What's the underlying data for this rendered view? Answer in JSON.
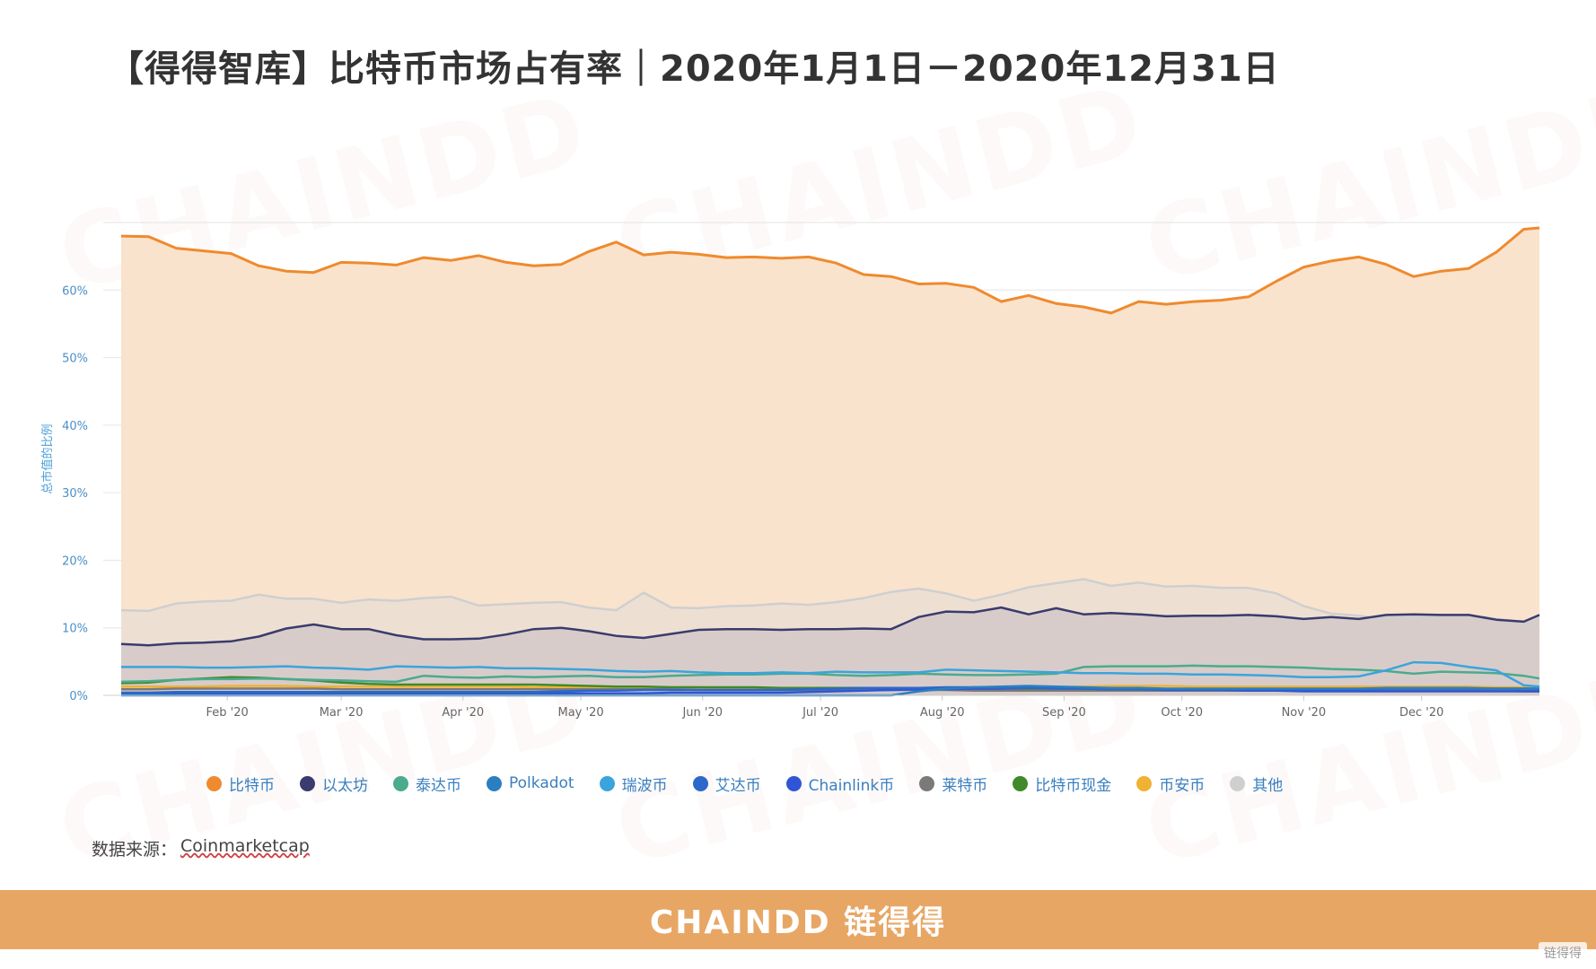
{
  "title": "【得得智库】比特币市场占有率｜2020年1月1日－2020年12月31日",
  "watermark": {
    "brand": "CHAINDD",
    "cn": "链得得"
  },
  "source": {
    "label": "数据来源：",
    "value": "Coinmarketcap"
  },
  "footer": {
    "brand": "CHAINDD 链得得"
  },
  "badge": "链得得",
  "chart_data": {
    "type": "area",
    "title": "",
    "ylabel": "总市值的比例",
    "xlabel": "",
    "ylim": [
      0,
      70
    ],
    "yticks": [
      "0%",
      "10%",
      "20%",
      "30%",
      "40%",
      "50%",
      "60%"
    ],
    "x_tick_labels": [
      "Feb '20",
      "Mar '20",
      "Apr '20",
      "May '20",
      "Jun '20",
      "Jul '20",
      "Aug '20",
      "Sep '20",
      "Oct '20",
      "Nov '20",
      "Dec '20"
    ],
    "x_range": [
      "2020-01-05",
      "2020-12-31"
    ],
    "grid": true,
    "legend_position": "bottom",
    "x": [
      "2020-01-05",
      "2020-01-12",
      "2020-01-19",
      "2020-01-26",
      "2020-02-02",
      "2020-02-09",
      "2020-02-16",
      "2020-02-23",
      "2020-03-01",
      "2020-03-08",
      "2020-03-15",
      "2020-03-22",
      "2020-03-29",
      "2020-04-05",
      "2020-04-12",
      "2020-04-19",
      "2020-04-26",
      "2020-05-03",
      "2020-05-10",
      "2020-05-17",
      "2020-05-24",
      "2020-05-31",
      "2020-06-07",
      "2020-06-14",
      "2020-06-21",
      "2020-06-28",
      "2020-07-05",
      "2020-07-12",
      "2020-07-19",
      "2020-07-26",
      "2020-08-02",
      "2020-08-09",
      "2020-08-16",
      "2020-08-23",
      "2020-08-30",
      "2020-09-06",
      "2020-09-13",
      "2020-09-20",
      "2020-09-27",
      "2020-10-04",
      "2020-10-11",
      "2020-10-18",
      "2020-10-25",
      "2020-11-01",
      "2020-11-08",
      "2020-11-15",
      "2020-11-22",
      "2020-11-29",
      "2020-12-06",
      "2020-12-13",
      "2020-12-20",
      "2020-12-27",
      "2020-12-31"
    ],
    "series": [
      {
        "name": "比特币",
        "color": "#ef8a2e",
        "fill": "#f9e3cd",
        "values": [
          68.0,
          67.9,
          66.2,
          65.8,
          65.4,
          63.6,
          62.8,
          62.6,
          64.1,
          64.0,
          63.7,
          64.8,
          64.4,
          65.1,
          64.1,
          63.6,
          63.8,
          65.7,
          67.1,
          65.2,
          65.6,
          65.3,
          64.8,
          64.9,
          64.7,
          64.9,
          64.0,
          62.3,
          62.0,
          60.9,
          61.0,
          60.4,
          58.3,
          59.2,
          58.0,
          57.5,
          56.6,
          58.3,
          57.9,
          58.3,
          58.5,
          59.0,
          61.3,
          63.4,
          64.3,
          64.9,
          63.8,
          62.0,
          62.8,
          63.2,
          65.6,
          69.0,
          69.2
        ]
      },
      {
        "name": "以太坊",
        "color": "#3a3b6e",
        "values": [
          7.6,
          7.4,
          7.7,
          7.8,
          8.0,
          8.7,
          9.9,
          10.5,
          9.8,
          9.8,
          8.9,
          8.3,
          8.3,
          8.4,
          9.0,
          9.8,
          10.0,
          9.5,
          8.8,
          8.5,
          9.1,
          9.7,
          9.8,
          9.8,
          9.7,
          9.8,
          9.8,
          9.9,
          9.8,
          11.6,
          12.4,
          12.3,
          13.0,
          12.0,
          12.9,
          12.0,
          12.2,
          12.0,
          11.7,
          11.8,
          11.8,
          11.9,
          11.7,
          11.3,
          11.6,
          11.3,
          11.9,
          12.0,
          11.9,
          11.9,
          11.2,
          10.9,
          11.9
        ]
      },
      {
        "name": "泰达币",
        "color": "#4aab8e",
        "values": [
          2.0,
          2.1,
          2.3,
          2.4,
          2.4,
          2.5,
          2.4,
          2.3,
          2.2,
          2.1,
          2.0,
          2.9,
          2.7,
          2.6,
          2.8,
          2.7,
          2.8,
          2.9,
          2.7,
          2.7,
          2.9,
          3.0,
          3.1,
          3.1,
          3.2,
          3.2,
          3.0,
          2.9,
          3.0,
          3.2,
          3.1,
          3.0,
          3.0,
          3.1,
          3.2,
          4.2,
          4.3,
          4.3,
          4.3,
          4.4,
          4.3,
          4.3,
          4.2,
          4.1,
          3.9,
          3.8,
          3.6,
          3.2,
          3.5,
          3.4,
          3.3,
          2.9,
          2.5
        ]
      },
      {
        "name": "Polkadot",
        "color": "#2a7fc2",
        "values": [
          0,
          0,
          0,
          0,
          0,
          0,
          0,
          0,
          0,
          0,
          0,
          0,
          0,
          0,
          0,
          0,
          0,
          0,
          0,
          0,
          0,
          0,
          0,
          0,
          0,
          0,
          0,
          0,
          0,
          0.6,
          1.0,
          1.2,
          1.3,
          1.4,
          1.3,
          1.2,
          1.1,
          1.1,
          1.0,
          1.0,
          1.0,
          1.0,
          1.0,
          1.0,
          1.0,
          1.0,
          1.1,
          1.1,
          1.1,
          1.1,
          1.0,
          1.0,
          1.0
        ]
      },
      {
        "name": "瑞波币",
        "color": "#3ba4dc",
        "values": [
          4.2,
          4.2,
          4.2,
          4.1,
          4.1,
          4.2,
          4.3,
          4.1,
          4.0,
          3.8,
          4.3,
          4.2,
          4.1,
          4.2,
          4.0,
          4.0,
          3.9,
          3.8,
          3.6,
          3.5,
          3.6,
          3.4,
          3.3,
          3.3,
          3.4,
          3.3,
          3.5,
          3.4,
          3.4,
          3.4,
          3.8,
          3.7,
          3.6,
          3.5,
          3.4,
          3.3,
          3.3,
          3.2,
          3.2,
          3.1,
          3.1,
          3.0,
          2.9,
          2.7,
          2.7,
          2.8,
          3.7,
          4.9,
          4.8,
          4.2,
          3.7,
          1.5,
          1.3
        ]
      },
      {
        "name": "艾达币",
        "color": "#2c68c9",
        "values": [
          0.4,
          0.4,
          0.5,
          0.5,
          0.5,
          0.5,
          0.5,
          0.5,
          0.5,
          0.5,
          0.5,
          0.5,
          0.5,
          0.5,
          0.5,
          0.5,
          0.6,
          0.7,
          0.7,
          0.8,
          0.8,
          0.8,
          0.8,
          0.8,
          0.8,
          0.9,
          1.0,
          1.1,
          1.1,
          1.1,
          1.2,
          1.2,
          1.1,
          1.1,
          1.0,
          1.0,
          0.9,
          0.9,
          0.9,
          0.9,
          0.9,
          0.9,
          0.9,
          0.9,
          0.9,
          0.9,
          1.0,
          1.0,
          1.0,
          1.0,
          1.0,
          1.0,
          1.0
        ]
      },
      {
        "name": "Chainlink币",
        "color": "#2f55d6",
        "values": [
          0.3,
          0.3,
          0.3,
          0.3,
          0.3,
          0.3,
          0.3,
          0.3,
          0.3,
          0.3,
          0.3,
          0.3,
          0.3,
          0.3,
          0.3,
          0.3,
          0.3,
          0.3,
          0.3,
          0.3,
          0.4,
          0.4,
          0.4,
          0.4,
          0.4,
          0.5,
          0.6,
          0.7,
          0.8,
          0.9,
          0.9,
          1.0,
          1.0,
          1.1,
          1.2,
          1.0,
          0.9,
          0.9,
          0.8,
          0.8,
          0.8,
          0.7,
          0.7,
          0.6,
          0.6,
          0.6,
          0.6,
          0.6,
          0.6,
          0.6,
          0.6,
          0.6,
          0.6
        ]
      },
      {
        "name": "莱特币",
        "color": "#7a7a7a",
        "values": [
          0.9,
          0.9,
          1.0,
          1.0,
          1.0,
          1.0,
          1.0,
          1.0,
          0.9,
          0.9,
          0.9,
          0.9,
          0.9,
          0.9,
          0.9,
          0.9,
          0.9,
          0.9,
          0.9,
          0.9,
          0.9,
          0.8,
          0.8,
          0.8,
          0.8,
          0.8,
          0.8,
          0.8,
          0.8,
          0.8,
          0.8,
          0.7,
          0.7,
          0.7,
          0.7,
          0.7,
          0.7,
          0.7,
          0.7,
          0.7,
          0.7,
          0.7,
          0.7,
          0.7,
          0.8,
          0.8,
          0.8,
          0.8,
          0.8,
          0.8,
          0.8,
          0.8,
          0.8
        ]
      },
      {
        "name": "比特币现金",
        "color": "#3f8a2a",
        "values": [
          1.8,
          1.9,
          2.3,
          2.5,
          2.7,
          2.6,
          2.4,
          2.2,
          1.9,
          1.7,
          1.6,
          1.6,
          1.6,
          1.6,
          1.6,
          1.6,
          1.5,
          1.4,
          1.3,
          1.3,
          1.2,
          1.2,
          1.2,
          1.2,
          1.1,
          1.1,
          1.1,
          1.1,
          1.1,
          1.1,
          1.0,
          1.0,
          1.0,
          1.0,
          1.0,
          0.9,
          0.9,
          0.9,
          0.9,
          0.9,
          0.9,
          0.8,
          0.8,
          0.8,
          0.8,
          0.8,
          0.7,
          0.7,
          0.7,
          0.7,
          0.7,
          0.6,
          0.6
        ]
      },
      {
        "name": "币安币",
        "color": "#efb232",
        "values": [
          1.3,
          1.3,
          1.3,
          1.3,
          1.4,
          1.4,
          1.4,
          1.3,
          1.3,
          1.3,
          1.3,
          1.3,
          1.3,
          1.3,
          1.3,
          1.2,
          1.2,
          1.2,
          1.2,
          1.2,
          1.2,
          1.2,
          1.1,
          1.1,
          1.1,
          1.1,
          1.1,
          1.1,
          1.1,
          1.1,
          1.1,
          1.1,
          1.1,
          1.1,
          1.2,
          1.3,
          1.4,
          1.4,
          1.4,
          1.3,
          1.3,
          1.3,
          1.3,
          1.3,
          1.3,
          1.3,
          1.3,
          1.3,
          1.3,
          1.3,
          1.2,
          1.2,
          1.2
        ]
      },
      {
        "name": "其他",
        "color": "#cfcfcf",
        "values": [
          12.6,
          12.5,
          13.6,
          13.9,
          14.0,
          14.9,
          14.3,
          14.3,
          13.7,
          14.2,
          14.0,
          14.4,
          14.6,
          13.3,
          13.5,
          13.7,
          13.8,
          13.0,
          12.6,
          15.2,
          13.0,
          12.9,
          13.2,
          13.3,
          13.6,
          13.4,
          13.8,
          14.4,
          15.3,
          15.8,
          15.1,
          14.0,
          14.9,
          16.0,
          16.6,
          17.2,
          16.2,
          16.7,
          16.1,
          16.2,
          15.9,
          15.9,
          15.1,
          13.2,
          12.1,
          11.8,
          11.2,
          11.3,
          11.7,
          11.9,
          11.3,
          10.9,
          9.5
        ]
      }
    ]
  }
}
